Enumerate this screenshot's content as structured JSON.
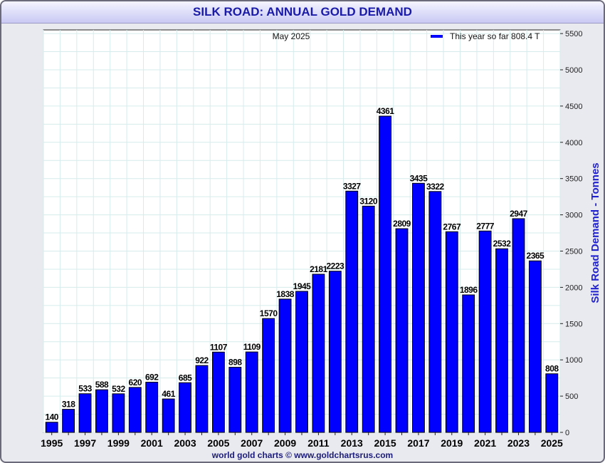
{
  "window": {
    "title": "SILK ROAD: ANNUAL GOLD DEMAND",
    "footer": "world gold charts © www.goldchartsrus.com"
  },
  "colors": {
    "bar": "#0000ff",
    "title": "#1a1aa8",
    "ylabel": "#2222cc",
    "grid": "#d6ecec"
  },
  "chart_data": {
    "type": "bar",
    "subtitle": "May 2025",
    "ylabel": "Silk Road Demand - Tonnes",
    "xlabel": "",
    "ylim": [
      0,
      5500
    ],
    "yticks": [
      0,
      500,
      1000,
      1500,
      2000,
      2500,
      3000,
      3500,
      4000,
      4500,
      5000,
      5500
    ],
    "grid": true,
    "legend_position": "top-right",
    "legend_label": "This year so far 808.4 T",
    "categories": [
      "1995",
      "1996",
      "1997",
      "1998",
      "1999",
      "2000",
      "2001",
      "2002",
      "2003",
      "2004",
      "2005",
      "2006",
      "2007",
      "2008",
      "2009",
      "2010",
      "2011",
      "2012",
      "2013",
      "2014",
      "2015",
      "2016",
      "2017",
      "2018",
      "2019",
      "2020",
      "2021",
      "2022",
      "2023",
      "2024",
      "2025"
    ],
    "x_tick_labels": [
      "1995",
      "1997",
      "1999",
      "2001",
      "2003",
      "2005",
      "2007",
      "2009",
      "2011",
      "2013",
      "2015",
      "2017",
      "2019",
      "2021",
      "2023",
      "2025"
    ],
    "values": [
      140,
      318,
      533,
      588,
      532,
      620,
      692,
      461,
      685,
      922,
      1107,
      898,
      1109,
      1570,
      1838,
      1945,
      2181,
      2223,
      3327,
      3120,
      4361,
      2809,
      3435,
      3322,
      2767,
      1896,
      2777,
      2532,
      2947,
      2365,
      808
    ],
    "data_labels": [
      "140",
      "318",
      "533",
      "588",
      "532",
      "620",
      "692",
      "461",
      "685",
      "922",
      "1107",
      "898",
      "1109",
      "1570",
      "1838",
      "1945",
      "2181",
      "2223",
      "3327",
      "3120",
      "4361",
      "2809",
      "3435",
      "3322",
      "2767",
      "1896",
      "2777",
      "2532",
      "2947",
      "2365",
      "808"
    ]
  }
}
